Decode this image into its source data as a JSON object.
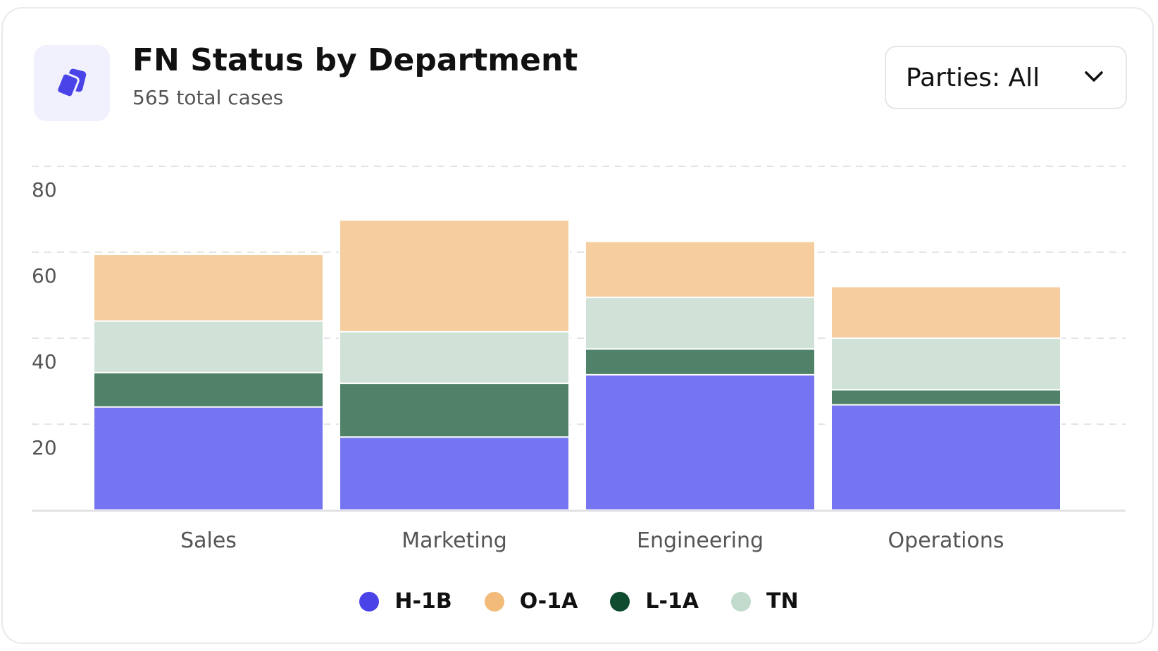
{
  "header": {
    "title": "FN Status by Department",
    "subtitle": "565 total cases",
    "icon": "stacked-cards-icon"
  },
  "filter": {
    "label": "Parties: All",
    "icon": "chevron-down-icon"
  },
  "colors": {
    "H-1B": "#7675f1",
    "O-1A": "#f5cd9e",
    "L-1A": "#4f8268",
    "TN": "#d0e2d8",
    "legend_H-1B": "#4a44e8",
    "legend_O-1A": "#f2bb7a",
    "legend_L-1A": "#0f4b2e",
    "legend_TN": "#c2dbcd",
    "accent": "#4a44e8"
  },
  "chart_data": {
    "type": "bar",
    "stacked": true,
    "categories": [
      "Sales",
      "Marketing",
      "Engineering",
      "Operations"
    ],
    "series": [
      {
        "name": "H-1B",
        "values": [
          24,
          17,
          31.5,
          24.5
        ]
      },
      {
        "name": "L-1A",
        "values": [
          8,
          12.5,
          6,
          3.5
        ]
      },
      {
        "name": "TN",
        "values": [
          12,
          12,
          12,
          12
        ]
      },
      {
        "name": "O-1A",
        "values": [
          15.5,
          26,
          13,
          12
        ]
      }
    ],
    "legend": [
      "H-1B",
      "O-1A",
      "L-1A",
      "TN"
    ],
    "legend_position": "bottom-center",
    "y_ticks": [
      20,
      40,
      60,
      80
    ],
    "ylim": [
      0,
      80
    ],
    "grid": true
  }
}
